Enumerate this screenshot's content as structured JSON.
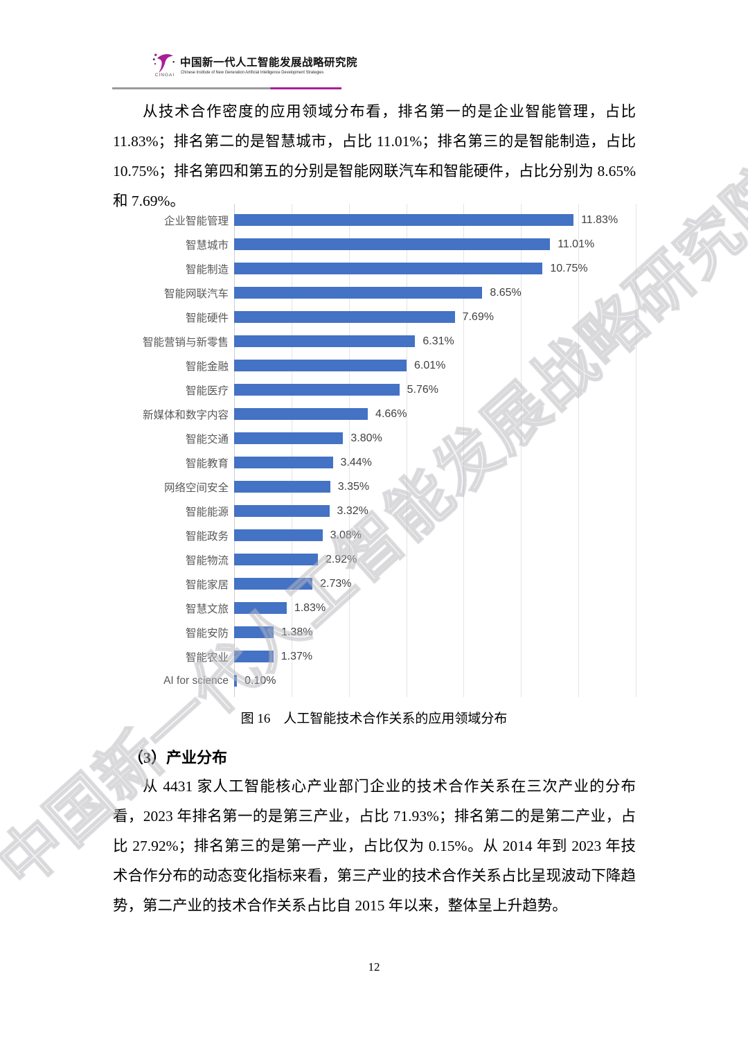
{
  "header": {
    "logo": {
      "acronym": "CINGAI",
      "title_zh": "中国新一代人工智能发展战略研究院",
      "title_en": "Chinese Institute of New Generation Artificial Intelligence Development Strategies",
      "accent_color": "#a81e96",
      "rule_gray_color": "#9b9b9b"
    }
  },
  "watermark": {
    "text": "中国新一代人工智能发展战略研究院"
  },
  "paragraphs": {
    "para1": "从技术合作密度的应用领域分布看，排名第一的是企业智能管理，占比 11.83%；排名第二的是智慧城市，占比 11.01%；排名第三的是智能制造，占比 10.75%；排名第四和第五的分别是智能网联汽车和智能硬件，占比分别为 8.65% 和 7.69%。",
    "para2": "从 4431 家人工智能核心产业部门企业的技术合作关系在三次产业的分布看，2023 年排名第一的是第三产业，占比 71.93%；排名第二的是第二产业，占比 27.92%；排名第三的是第一产业，占比仅为 0.15%。从 2014 年到 2023 年技术合作分布的动态变化指标来看，第三产业的技术合作关系占比呈现波动下降趋势，第二产业的技术合作关系占比自 2015 年以来，整体呈上升趋势。"
  },
  "figure": {
    "caption": "图 16　人工智能技术合作关系的应用领域分布"
  },
  "section_heading": "（3）产业分布",
  "page_number": "12",
  "chart_data": {
    "type": "bar",
    "orientation": "horizontal",
    "title": "",
    "xlabel": "",
    "ylabel": "",
    "bar_color": "#4472c4",
    "gridline_color": "#e4e4e4",
    "grid": true,
    "xlim": [
      0,
      14
    ],
    "gridline_interval": 2,
    "categories": [
      "企业智能管理",
      "智慧城市",
      "智能制造",
      "智能网联汽车",
      "智能硬件",
      "智能营销与新零售",
      "智能金融",
      "智能医疗",
      "新媒体和数字内容",
      "智能交通",
      "智能教育",
      "网络空间安全",
      "智能能源",
      "智能政务",
      "智能物流",
      "智能家居",
      "智慧文旅",
      "智能安防",
      "智能农业",
      "AI for science"
    ],
    "values": [
      11.83,
      11.01,
      10.75,
      8.65,
      7.69,
      6.31,
      6.01,
      5.76,
      4.66,
      3.8,
      3.44,
      3.35,
      3.32,
      3.08,
      2.92,
      2.73,
      1.83,
      1.38,
      1.37,
      0.1
    ],
    "value_labels": [
      "11.83%",
      "11.01%",
      "10.75%",
      "8.65%",
      "7.69%",
      "6.31%",
      "6.01%",
      "5.76%",
      "4.66%",
      "3.80%",
      "3.44%",
      "3.35%",
      "3.32%",
      "3.08%",
      "2.92%",
      "2.73%",
      "1.83%",
      "1.38%",
      "1.37%",
      "0.10%"
    ]
  }
}
